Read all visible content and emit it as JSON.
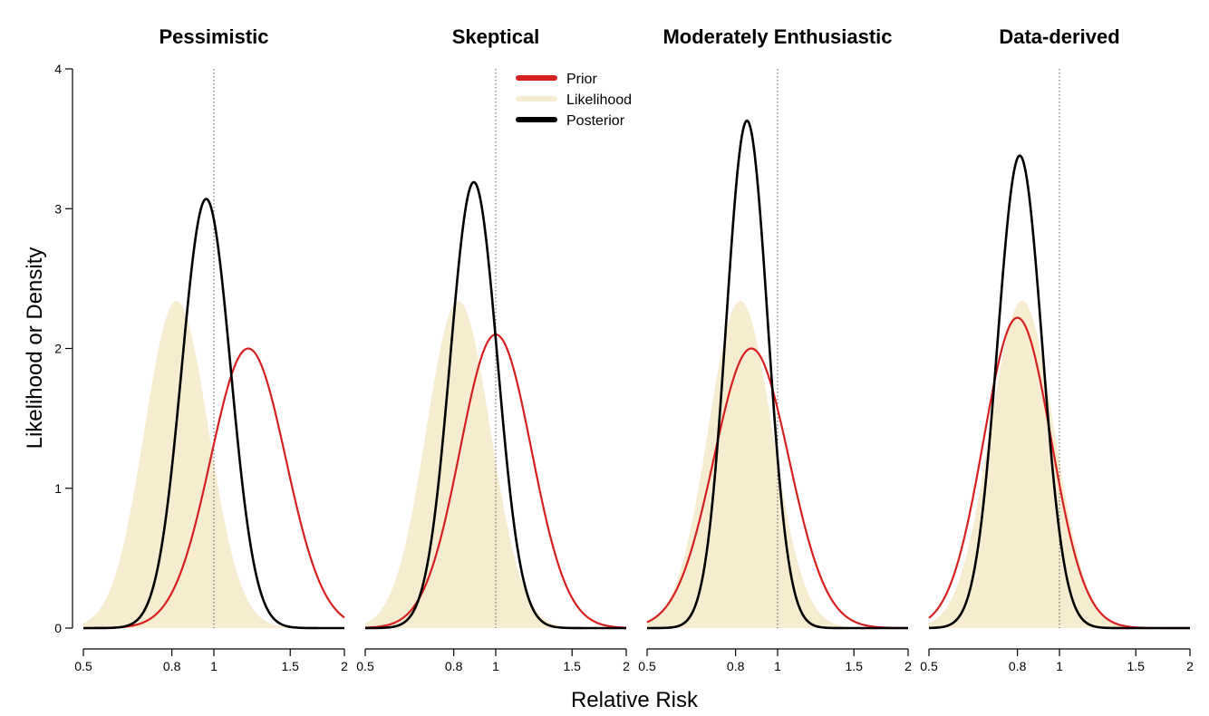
{
  "chart_data": {
    "type": "area",
    "xlabel": "Relative Risk",
    "ylabel": "Likelihood or Density",
    "y_axis": {
      "range": [
        0,
        4
      ],
      "ticks": [
        0,
        1,
        2,
        3,
        4
      ],
      "tick_labels": [
        "0",
        "1",
        "2",
        "3",
        "4"
      ]
    },
    "x_axis": {
      "scale": "log",
      "range": [
        0.5,
        2
      ],
      "ticks": [
        0.5,
        0.8,
        1,
        1.5,
        2
      ],
      "tick_labels": [
        "0.5",
        "0.8",
        "1",
        "1.5",
        "2"
      ]
    },
    "reference_line_x": 1,
    "grid": false,
    "legend": {
      "placement": "top-center",
      "entries": [
        {
          "key": "prior",
          "label": "Prior",
          "color": "#d62020"
        },
        {
          "key": "likelihood",
          "label": "Likelihood",
          "color": "#f6ecd0"
        },
        {
          "key": "posterior",
          "label": "Posterior",
          "color": "#000000"
        }
      ]
    },
    "panels": [
      {
        "title": "Pessimistic",
        "series": {
          "likelihood": {
            "peak_x": 0.82,
            "peak_density": 2.34
          },
          "prior": {
            "peak_x": 1.2,
            "peak_density": 2.0
          },
          "posterior": {
            "peak_x": 0.96,
            "peak_density": 3.07
          }
        }
      },
      {
        "title": "Skeptical",
        "series": {
          "likelihood": {
            "peak_x": 0.82,
            "peak_density": 2.34
          },
          "prior": {
            "peak_x": 1.0,
            "peak_density": 2.1
          },
          "posterior": {
            "peak_x": 0.89,
            "peak_density": 3.19
          }
        }
      },
      {
        "title": "Moderately Enthusiastic",
        "series": {
          "likelihood": {
            "peak_x": 0.82,
            "peak_density": 2.34
          },
          "prior": {
            "peak_x": 0.87,
            "peak_density": 2.0
          },
          "posterior": {
            "peak_x": 0.85,
            "peak_density": 3.63
          }
        }
      },
      {
        "title": "Data-derived",
        "series": {
          "likelihood": {
            "peak_x": 0.82,
            "peak_density": 2.34
          },
          "prior": {
            "peak_x": 0.8,
            "peak_density": 2.22
          },
          "posterior": {
            "peak_x": 0.81,
            "peak_density": 3.38
          }
        }
      }
    ]
  }
}
